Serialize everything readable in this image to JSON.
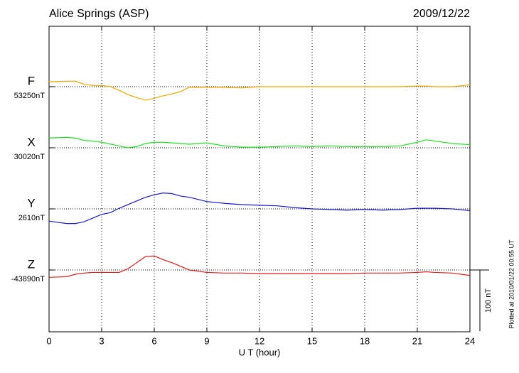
{
  "chart_data": {
    "type": "line",
    "title": "Alice Springs (ASP)",
    "date": "2009/12/22",
    "x_label": "U T (hour)",
    "plotted_note": "Plotted at 2010/01/22 00:55 UT",
    "scale_value": 100,
    "scale_label": "100 nT",
    "xlim": [
      0,
      24
    ],
    "xticks": [
      0,
      3,
      6,
      9,
      12,
      15,
      18,
      21,
      24
    ],
    "grid": true,
    "x": [
      0,
      1,
      1.5,
      2,
      2.5,
      3,
      3.5,
      4,
      4.5,
      5,
      5.5,
      6,
      6.5,
      7,
      7.5,
      8,
      9,
      10,
      11,
      12,
      13,
      14,
      15,
      16,
      17,
      18,
      19,
      20,
      21,
      21.5,
      22,
      23,
      24
    ],
    "series": [
      {
        "name": "F",
        "color": "#f0a800",
        "baseline": 53250,
        "baseline_label": "53250nT",
        "values": [
          53258,
          53259,
          53259,
          53254,
          53252,
          53252,
          53250,
          53244,
          53237,
          53232,
          53228,
          53231,
          53235,
          53238,
          53242,
          53249,
          53249,
          53249,
          53248,
          53250,
          53250,
          53250,
          53250,
          53250,
          53250,
          53250,
          53250,
          53250,
          53251,
          53251,
          53250,
          53250,
          53253
        ]
      },
      {
        "name": "X",
        "color": "#22dd22",
        "baseline": 30020,
        "baseline_label": "30020nT",
        "values": [
          30036,
          30037,
          30036,
          30032,
          30031,
          30029,
          30026,
          30023,
          30020,
          30022,
          30027,
          30029,
          30029,
          30028,
          30027,
          30026,
          30028,
          30023,
          30021,
          30021,
          30022,
          30023,
          30022,
          30023,
          30022,
          30022,
          30022,
          30023,
          30029,
          30033,
          30031,
          30027,
          30025
        ]
      },
      {
        "name": "Y",
        "color": "#1a1acc",
        "baseline": 2610,
        "baseline_label": "2610nT",
        "values": [
          2590,
          2586,
          2586,
          2589,
          2595,
          2601,
          2604,
          2611,
          2617,
          2623,
          2629,
          2633,
          2636,
          2635,
          2631,
          2629,
          2622,
          2619,
          2617,
          2616,
          2615,
          2612,
          2610,
          2609,
          2608,
          2609,
          2608,
          2609,
          2611,
          2611,
          2611,
          2610,
          2607
        ]
      },
      {
        "name": "Z",
        "color": "#dd1a1a",
        "baseline": -43890,
        "baseline_label": "-43890nT",
        "values": [
          -43902,
          -43901,
          -43897,
          -43895,
          -43894,
          -43894,
          -43894,
          -43894,
          -43888,
          -43878,
          -43868,
          -43867,
          -43873,
          -43878,
          -43884,
          -43890,
          -43894,
          -43895,
          -43895,
          -43896,
          -43896,
          -43896,
          -43896,
          -43896,
          -43896,
          -43895,
          -43895,
          -43895,
          -43894,
          -43893,
          -43894,
          -43895,
          -43899
        ]
      }
    ]
  }
}
